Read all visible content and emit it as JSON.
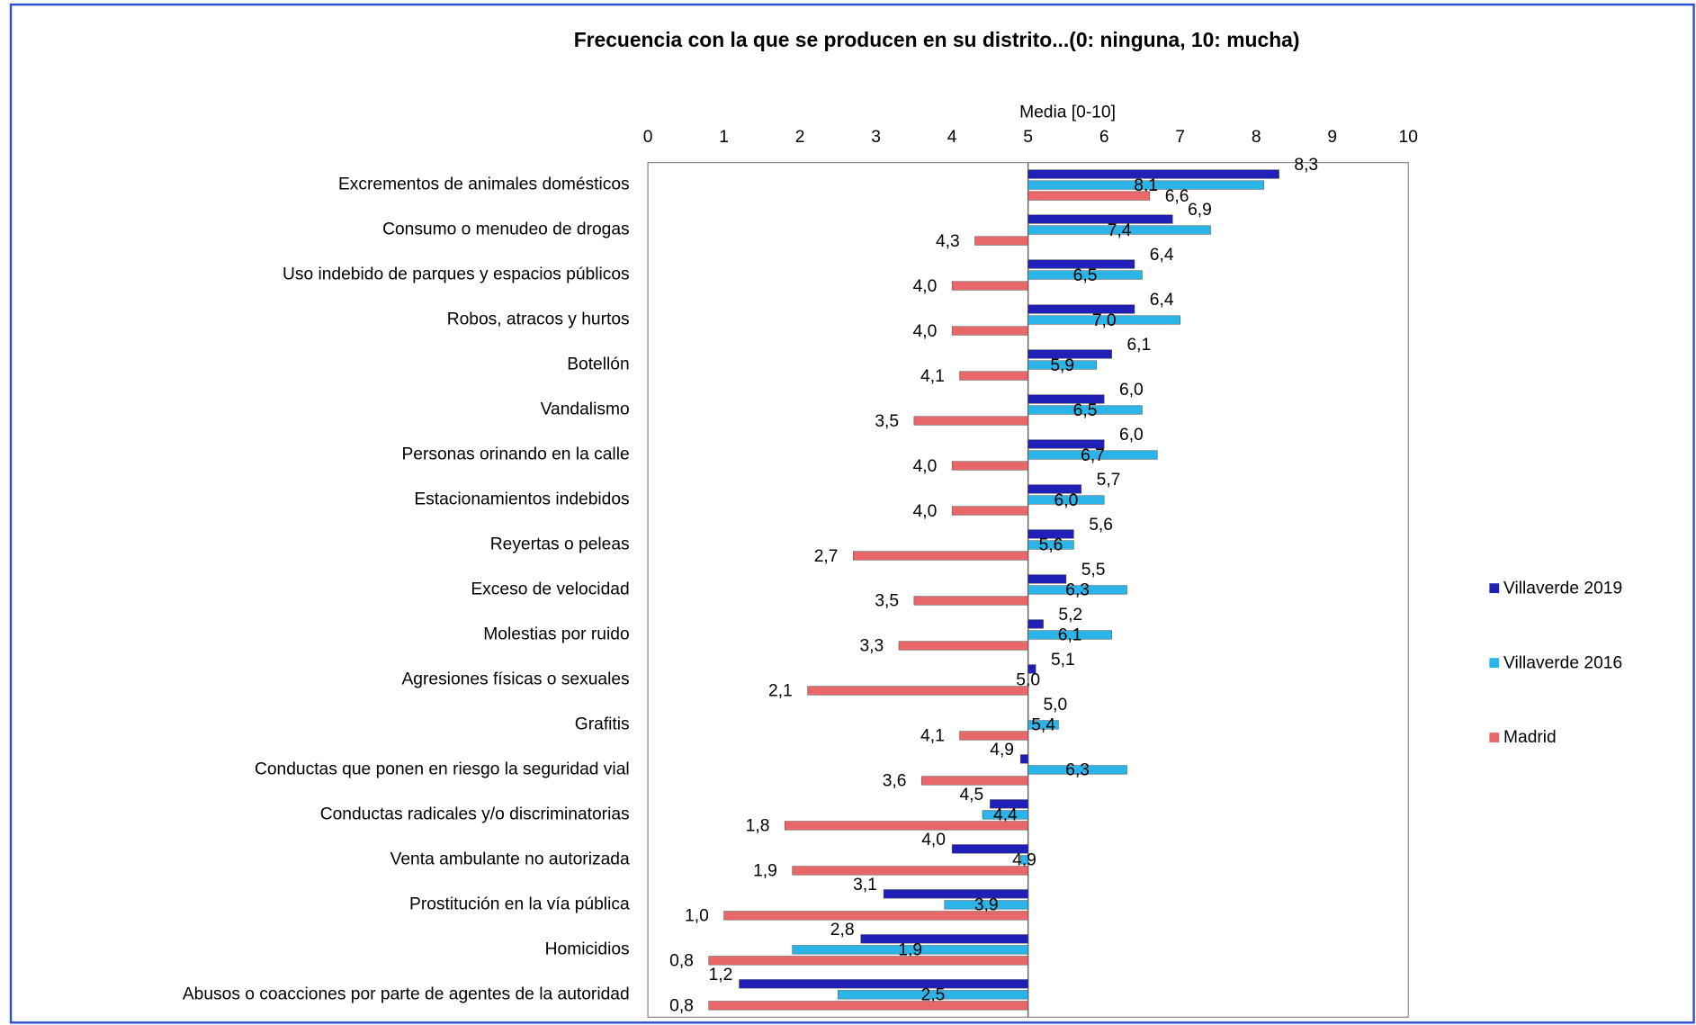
{
  "chart_data": {
    "type": "hbar",
    "title": "Frecuencia con la que se producen en su distrito...(0: ninguna, 10: mucha)",
    "x_label": "Media [0-10]",
    "xlim": [
      0,
      10
    ],
    "xticks": [
      0,
      1,
      2,
      3,
      4,
      5,
      6,
      7,
      8,
      9,
      10
    ],
    "xcross": 5,
    "legend": "right",
    "categories": [
      "Excrementos de animales domésticos",
      "Consumo o menudeo de drogas",
      "Uso indebido de parques y espacios públicos",
      "Robos, atracos y hurtos",
      "Botellón",
      "Vandalismo",
      "Personas orinando en la calle",
      "Estacionamientos indebidos",
      "Reyertas o peleas",
      "Exceso de velocidad",
      "Molestias por ruido",
      "Agresiones físicas  o sexuales",
      "Grafitis",
      "Conductas que ponen en riesgo la seguridad vial",
      "Conductas radicales y/o discriminatorias",
      "Venta ambulante no autorizada",
      "Prostitución en la vía pública",
      "Homicidios",
      "Abusos o coacciones por parte de agentes de la autoridad"
    ],
    "series": [
      {
        "name": "Villaverde 2019",
        "color": "#2020b8",
        "values": [
          8.3,
          6.9,
          6.4,
          6.4,
          6.1,
          6.0,
          6.0,
          5.7,
          5.6,
          5.5,
          5.2,
          5.1,
          5.0,
          4.9,
          4.5,
          4.0,
          3.1,
          2.8,
          1.2
        ],
        "value_labels": [
          "8,3",
          "6,9",
          "6,4",
          "6,4",
          "6,1",
          "6,0",
          "6,0",
          "5,7",
          "5,6",
          "5,5",
          "5,2",
          "5,1",
          "5,0",
          "4,9",
          "4,5",
          "4,0",
          "3,1",
          "2,8",
          "1,2"
        ]
      },
      {
        "name": "Villaverde 2016",
        "color": "#2bb4e8",
        "values": [
          8.1,
          7.4,
          6.5,
          7.0,
          5.9,
          6.5,
          6.7,
          6.0,
          5.6,
          6.3,
          6.1,
          5.0,
          5.4,
          6.3,
          4.4,
          4.9,
          3.9,
          1.9,
          2.5
        ],
        "value_labels": [
          "8,1",
          "7,4",
          "6,5",
          "7,0",
          "5,9",
          "6,5",
          "6,7",
          "6,0",
          "5,6",
          "6,3",
          "6,1",
          "5,0",
          "5,4",
          "6,3",
          "4,4",
          "4,9",
          "3,9",
          "1,9",
          "2,5"
        ]
      },
      {
        "name": "Madrid",
        "color": "#e8686a",
        "values": [
          6.6,
          4.3,
          4.0,
          4.0,
          4.1,
          3.5,
          4.0,
          4.0,
          2.7,
          3.5,
          3.3,
          2.1,
          4.1,
          3.6,
          1.8,
          1.9,
          1.0,
          0.8,
          0.8
        ],
        "value_labels": [
          "6,6",
          "4,3",
          "4,0",
          "4,0",
          "4,1",
          "3,5",
          "4,0",
          "4,0",
          "2,7",
          "3,5",
          "3,3",
          "2,1",
          "4,1",
          "3,6",
          "1,8",
          "1,9",
          "1,0",
          "0,8",
          "0,8"
        ]
      }
    ]
  }
}
